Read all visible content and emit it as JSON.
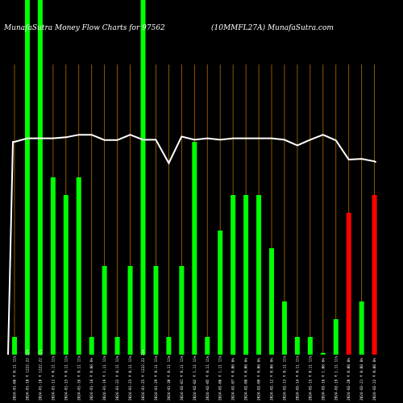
{
  "chart_data": {
    "type": "bar",
    "title_left": "MunafaSutra  Money Flow  Charts for 97562",
    "title_right": "(10MMFL27A) MunafaSutra.com",
    "ylim": [
      0,
      100
    ],
    "grid": "vertical lines",
    "colors": {
      "background": "#000000",
      "grid": "#b36a00",
      "up_bar": "#00ff00",
      "down_bar": "#ff0000",
      "line": "#ffffff",
      "text": "#ffffff"
    },
    "categories": [
      "2024-01-08 ₹ 0.11 11%",
      "2024-01-10 ₹ 1222.22 22%",
      "2024-01-10 ₹ 1222.22 22%",
      "2024-01-12 ₹ 0.11 11%",
      "2024-01-15 ₹ 0.11 11%",
      "2024-01-16 ₹ 0.11 11%",
      "2024-01-18 ₹ 0.06 6%",
      "2024-01-19 ₹ 1.11 11%",
      "2024-01-22 ₹ 0.11 11%",
      "2024-01-23 ₹ 0.11 11%",
      "2024-01-25 ₹ 1222.22 22%",
      "2024-01-29 ₹ 0.11 11%",
      "2024-01-30 ₹ 0.11 11%",
      "2024-02-01 ₹ 0.11 11%",
      "2024-02-02 ₹ 1.11 11%",
      "2024-02-05 ₹ 0.11 11%",
      "2024-02-06 ₹ 1.11 11%",
      "2024-02-07 ₹ 0.06 6%",
      "2024-02-08 ₹ 0.06 6%",
      "2024-02-09 ₹ 0.06 6%",
      "2024-02-12 ₹ 0.06 6%",
      "2024-02-13 ₹ 0.11 11%",
      "2024-02-14 ₹ 0.11 11%",
      "2024-02-15 ₹ 0.11 11%",
      "2024-02-16 ₹ 1.06 6%",
      "2024-02-19 ₹ 1.11 11%",
      "2024-02-20 ₹ 0.08 8%",
      "2024-02-21 ₹ 0.08 8%",
      "2024-02-22 ₹ 0.08 8%"
    ],
    "bars": [
      {
        "value": 5,
        "color": "green"
      },
      {
        "value": 100,
        "color": "green"
      },
      {
        "value": 100,
        "color": "green"
      },
      {
        "value": 50,
        "color": "green"
      },
      {
        "value": 45,
        "color": "green"
      },
      {
        "value": 50,
        "color": "green"
      },
      {
        "value": 5,
        "color": "green"
      },
      {
        "value": 25,
        "color": "green"
      },
      {
        "value": 5,
        "color": "green"
      },
      {
        "value": 25,
        "color": "green"
      },
      {
        "value": 100,
        "color": "green"
      },
      {
        "value": 25,
        "color": "green"
      },
      {
        "value": 5,
        "color": "green"
      },
      {
        "value": 25,
        "color": "green"
      },
      {
        "value": 60,
        "color": "green"
      },
      {
        "value": 5,
        "color": "green"
      },
      {
        "value": 35,
        "color": "green"
      },
      {
        "value": 45,
        "color": "green"
      },
      {
        "value": 45,
        "color": "green"
      },
      {
        "value": 45,
        "color": "green"
      },
      {
        "value": 30,
        "color": "green"
      },
      {
        "value": 15,
        "color": "green"
      },
      {
        "value": 5,
        "color": "green"
      },
      {
        "value": 5,
        "color": "green"
      },
      {
        "value": 0.5,
        "color": "green"
      },
      {
        "value": 10,
        "color": "green"
      },
      {
        "value": 40,
        "color": "red"
      },
      {
        "value": 15,
        "color": "green"
      },
      {
        "value": 45,
        "color": "red"
      }
    ],
    "line": [
      60,
      61,
      61,
      61,
      61.3,
      62,
      62,
      60.5,
      60.5,
      62,
      60.6,
      60.6,
      54,
      61.5,
      60.6,
      61,
      60.6,
      61,
      61,
      61,
      61,
      60.6,
      59,
      60.6,
      62,
      60.4,
      55,
      55.2,
      54.5
    ]
  }
}
